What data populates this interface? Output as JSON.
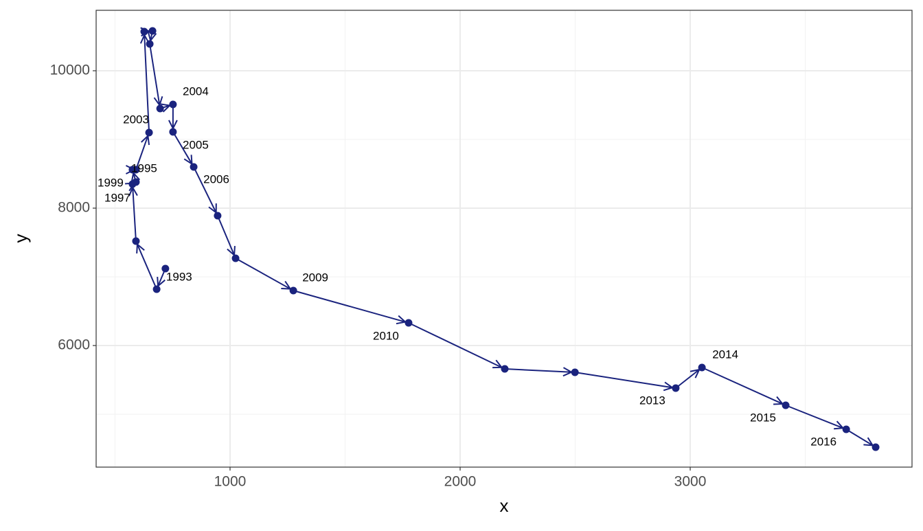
{
  "chart_data": {
    "type": "scatter",
    "connected": true,
    "color": "#1a237e",
    "x_label": "x",
    "y_label": "y",
    "xlim": [
      418,
      3964
    ],
    "ylim": [
      4230,
      10880
    ],
    "xticks": [
      1000,
      2000,
      3000
    ],
    "yticks": [
      6000,
      8000,
      10000
    ],
    "grid": true,
    "x": [
      719,
      681,
      591,
      576,
      591,
      576,
      591,
      648,
      627,
      663,
      651,
      696,
      752,
      752,
      842,
      946,
      1024,
      1275,
      1776,
      2194,
      2499,
      2937,
      3051,
      3415,
      3678,
      3806
    ],
    "y": [
      7120,
      6820,
      7520,
      8350,
      8380,
      8560,
      8560,
      9100,
      10570,
      10580,
      10390,
      9450,
      9510,
      9110,
      8600,
      7890,
      7270,
      6800,
      6330,
      5660,
      5610,
      5380,
      5680,
      5130,
      4780,
      4520
    ],
    "labels": [
      "1993",
      null,
      null,
      "1997",
      null,
      "1999",
      "1995",
      "2003",
      null,
      null,
      null,
      null,
      "2004",
      "2005",
      "2006",
      null,
      null,
      "2009",
      "2010",
      null,
      null,
      "2013",
      "2014",
      "2015",
      "2016",
      null
    ]
  }
}
